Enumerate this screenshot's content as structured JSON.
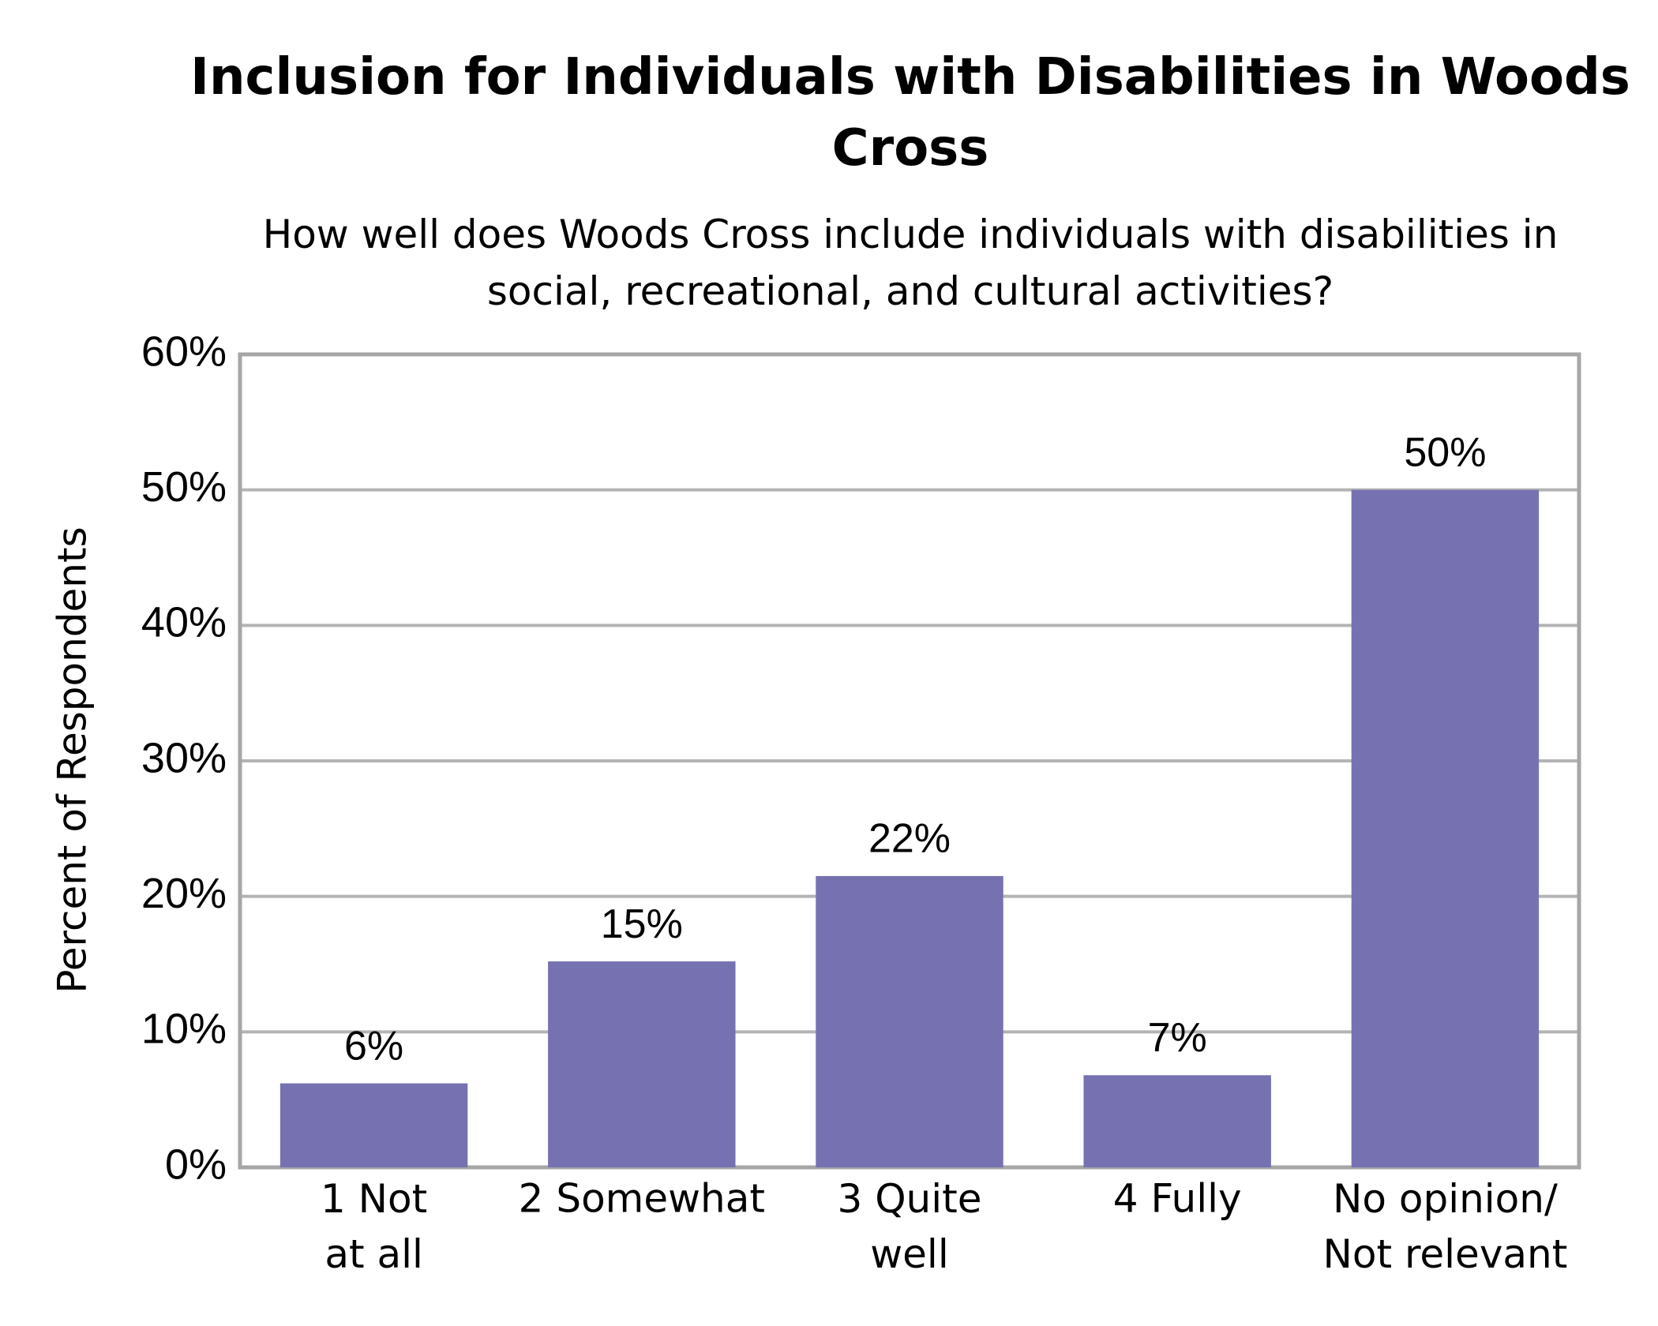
{
  "chart_data": {
    "type": "bar",
    "title": "Inclusion for Individuals with Disabilities in Woods\nCross",
    "subtitle": "How well does Woods Cross include individuals with disabilities in\nsocial, recreational, and cultural activities?",
    "y_label": "Percent of Respondents",
    "categories": [
      "1 Not\nat all",
      "2 Somewhat",
      "3 Quite\nwell",
      "4 Fully",
      "No opinion/\nNot relevant"
    ],
    "values": [
      6.2,
      15.2,
      21.5,
      6.8,
      50
    ],
    "value_labels": [
      "6%",
      "15%",
      "22%",
      "7%",
      "50%"
    ],
    "color": "#7672b2",
    "ylim": [
      0,
      60
    ],
    "yticks": [
      {
        "value": 0,
        "label": "0%"
      },
      {
        "value": 10,
        "label": "10%"
      },
      {
        "value": 20,
        "label": "20%"
      },
      {
        "value": 30,
        "label": "30%"
      },
      {
        "value": 40,
        "label": "40%"
      },
      {
        "value": 50,
        "label": "50%"
      },
      {
        "value": 60,
        "label": "60%"
      }
    ],
    "grid": true
  }
}
